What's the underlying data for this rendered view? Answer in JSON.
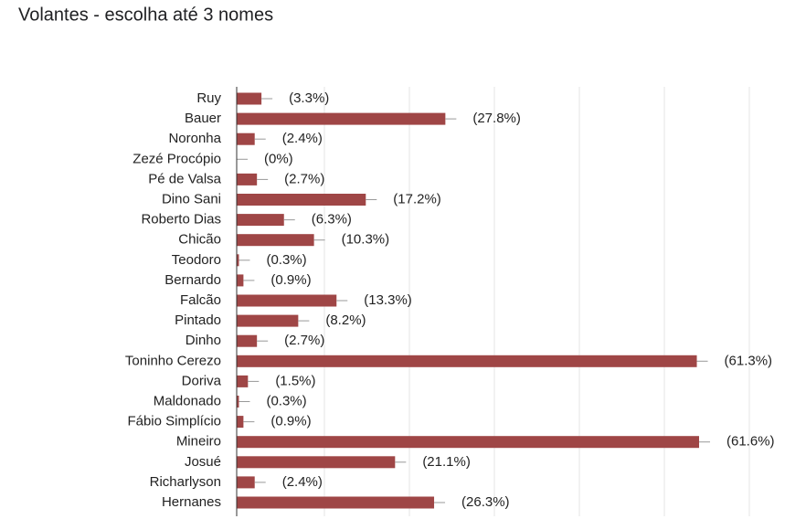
{
  "chart_data": {
    "type": "bar",
    "orientation": "horizontal",
    "title": "Volantes - escolha até 3 nomes",
    "categories": [
      "Ruy",
      "Bauer",
      "Noronha",
      "Zezé Procópio",
      "Pé de Valsa",
      "Dino Sani",
      "Roberto Dias",
      "Chicão",
      "Teodoro",
      "Bernardo",
      "Falcão",
      "Pintado",
      "Dinho",
      "Toninho Cerezo",
      "Doriva",
      "Maldonado",
      "Fábio Simplício",
      "Mineiro",
      "Josué",
      "Richarlyson",
      "Hernanes"
    ],
    "values": [
      3.3,
      27.8,
      2.4,
      0,
      2.7,
      17.2,
      6.3,
      10.3,
      0.3,
      0.9,
      13.3,
      8.2,
      2.7,
      61.3,
      1.5,
      0.3,
      0.9,
      61.6,
      21.1,
      2.4,
      26.3
    ],
    "value_labels": [
      "(3.3%)",
      "(27.8%)",
      "(2.4%)",
      "(0%)",
      "(2.7%)",
      "(17.2%)",
      "(6.3%)",
      "(10.3%)",
      "(0.3%)",
      "(0.9%)",
      "(13.3%)",
      "(8.2%)",
      "(2.7%)",
      "(61.3%)",
      "(1.5%)",
      "(0.3%)",
      "(0.9%)",
      "(61.6%)",
      "(21.1%)",
      "(2.4%)",
      "(26.3%)"
    ],
    "color": "#9f4646",
    "xlim": [
      0,
      75.6
    ]
  }
}
